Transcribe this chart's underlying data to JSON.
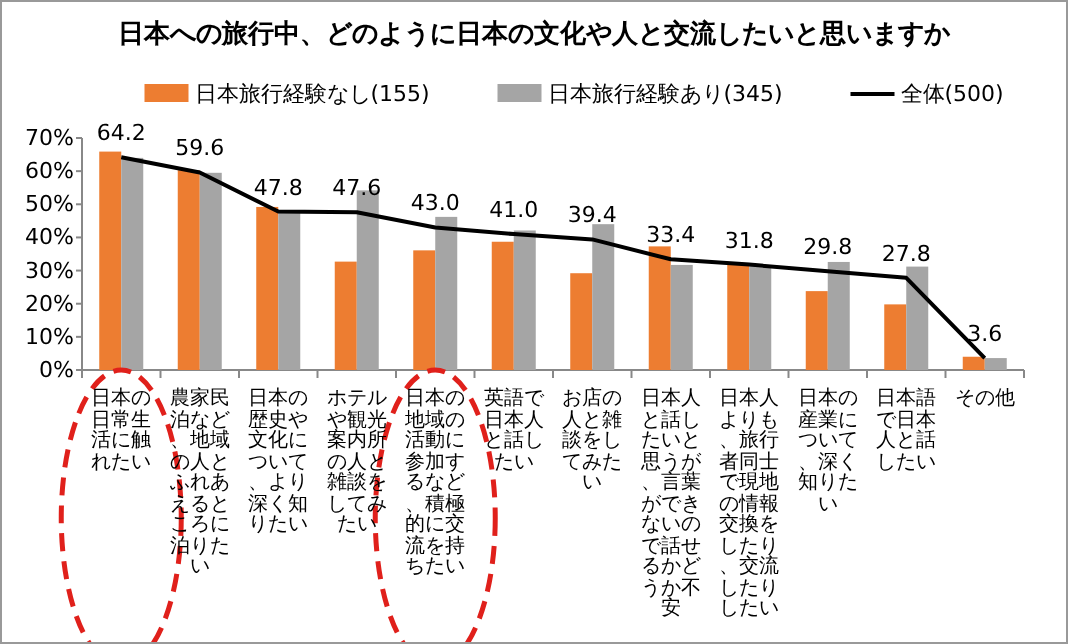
{
  "chart_data": {
    "type": "bar",
    "title": "日本への旅行中、どのように日本の文化や人と交流したいと思いますか",
    "categories": [
      "日本の日常生活に触れたい",
      "農家民泊など、地域の人とふれあえるところに泊りたい",
      "日本の歴史や文化について、より深く知りたい",
      "ホテルや観光案内所の人と雑談をしてみたい",
      "日本の地域の活動に参加するなど、積極的に交流を持ちたい",
      "英語で日本人と話したい",
      "お店の人と雑談をしてみたい",
      "日本人と話したいと思うが、言葉ができないので話せるかどうか不安",
      "日本人よりも、旅行者同士で現地の情報交換をしたり、交流したりしたい",
      "日本の産業について、深く知りたい",
      "日本語で日本人と話したい",
      "その他"
    ],
    "series": [
      {
        "name": "日本旅行経験なし(155)",
        "type": "bar",
        "color": "#ed7d31",
        "values": [
          65.9,
          60.3,
          49.2,
          32.7,
          36.1,
          38.7,
          29.2,
          37.3,
          31.9,
          23.8,
          19.8,
          4.0
        ]
      },
      {
        "name": "日本旅行経験あり(345)",
        "type": "bar",
        "color": "#a5a5a5",
        "values": [
          64.0,
          59.5,
          47.6,
          54.2,
          46.2,
          42.1,
          44.0,
          31.7,
          31.5,
          32.6,
          31.2,
          3.6
        ]
      },
      {
        "name": "全体(500)",
        "type": "line",
        "color": "#000000",
        "values": [
          64.2,
          59.6,
          47.8,
          47.6,
          43.0,
          41.0,
          39.4,
          33.4,
          31.8,
          29.8,
          27.8,
          3.6
        ],
        "value_labels": [
          "64.2",
          "59.6",
          "47.8",
          "47.6",
          "43.0",
          "41.0",
          "39.4",
          "33.4",
          "31.8",
          "29.8",
          "27.8",
          "3.6"
        ]
      }
    ],
    "ylim": [
      0,
      70
    ],
    "yticks": [
      {
        "value": 0,
        "label": "0%"
      },
      {
        "value": 10,
        "label": "10%"
      },
      {
        "value": 20,
        "label": "20%"
      },
      {
        "value": 30,
        "label": "30%"
      },
      {
        "value": 40,
        "label": "40%"
      },
      {
        "value": 50,
        "label": "50%"
      },
      {
        "value": 60,
        "label": "60%"
      },
      {
        "value": 70,
        "label": "70%"
      }
    ],
    "grid": false,
    "legend": "top",
    "marker": "none"
  }
}
